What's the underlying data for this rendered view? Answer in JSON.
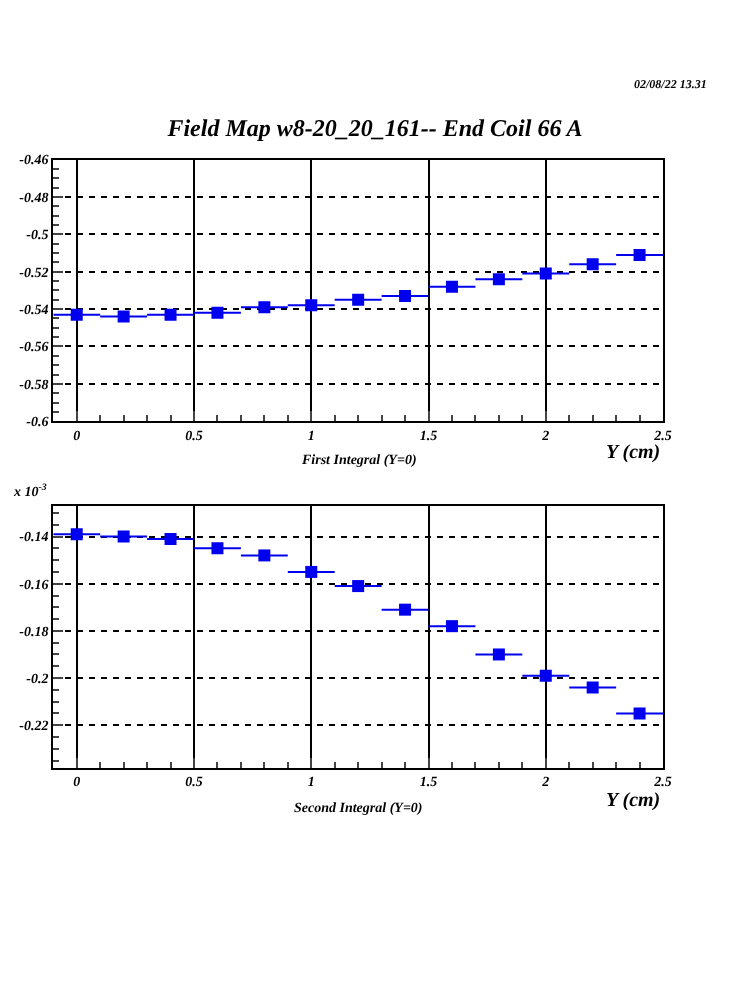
{
  "chart_data": [
    {
      "type": "scatter",
      "title": "Field Map w8-20_20_161-- End Coil 66 A",
      "xlabel": "Y (cm)",
      "annotations": [
        "02/08/22 13.31",
        "First Integral (Y=0)"
      ],
      "x": [
        0,
        0.2,
        0.4,
        0.6,
        0.8,
        1.0,
        1.2,
        1.4,
        1.6,
        1.8,
        2.0,
        2.2,
        2.4
      ],
      "series": [
        {
          "color": "#0000ee",
          "values": [
            -0.543,
            -0.544,
            -0.543,
            -0.542,
            -0.539,
            -0.538,
            -0.535,
            -0.533,
            -0.528,
            -0.524,
            -0.521,
            -0.516,
            -0.511
          ],
          "xerrors": [
            0.1,
            0.1,
            0.1,
            0.1,
            0.1,
            0.1,
            0.1,
            0.1,
            0.1,
            0.1,
            0.1,
            0.1,
            0.1
          ]
        }
      ],
      "xlim": [
        -0.1,
        2.5
      ],
      "xticks": [
        0,
        0.5,
        1,
        1.5,
        2,
        2.5
      ],
      "ylim": [
        -0.6,
        -0.46
      ],
      "yticks": [
        -0.6,
        -0.58,
        -0.56,
        -0.54,
        -0.52,
        -0.5,
        -0.48,
        -0.46
      ],
      "grid": true,
      "marker": "square"
    },
    {
      "type": "scatter",
      "xlabel": "Y (cm)",
      "annotations": [
        "x 10$^{-3}$",
        "Second Integral (Y=0)"
      ],
      "x": [
        0,
        0.2,
        0.4,
        0.6,
        0.8,
        1.0,
        1.2,
        1.4,
        1.6,
        1.8,
        2.0,
        2.2,
        2.4
      ],
      "series": [
        {
          "color": "#0000ee",
          "values": [
            -0.139,
            -0.14,
            -0.141,
            -0.145,
            -0.148,
            -0.155,
            -0.161,
            -0.171,
            -0.178,
            -0.19,
            -0.199,
            -0.204,
            -0.215
          ],
          "xerrors": [
            0.1,
            0.1,
            0.1,
            0.1,
            0.1,
            0.1,
            0.1,
            0.1,
            0.1,
            0.1,
            0.1,
            0.1,
            0.1
          ]
        }
      ],
      "xlim": [
        -0.1,
        2.5
      ],
      "xticks": [
        0,
        0.5,
        1,
        1.5,
        2,
        2.5
      ],
      "ylim": [
        -0.238,
        -0.127
      ],
      "yticks": [
        -0.22,
        -0.2,
        -0.18,
        -0.16,
        -0.14
      ],
      "grid": true,
      "marker": "square"
    }
  ]
}
